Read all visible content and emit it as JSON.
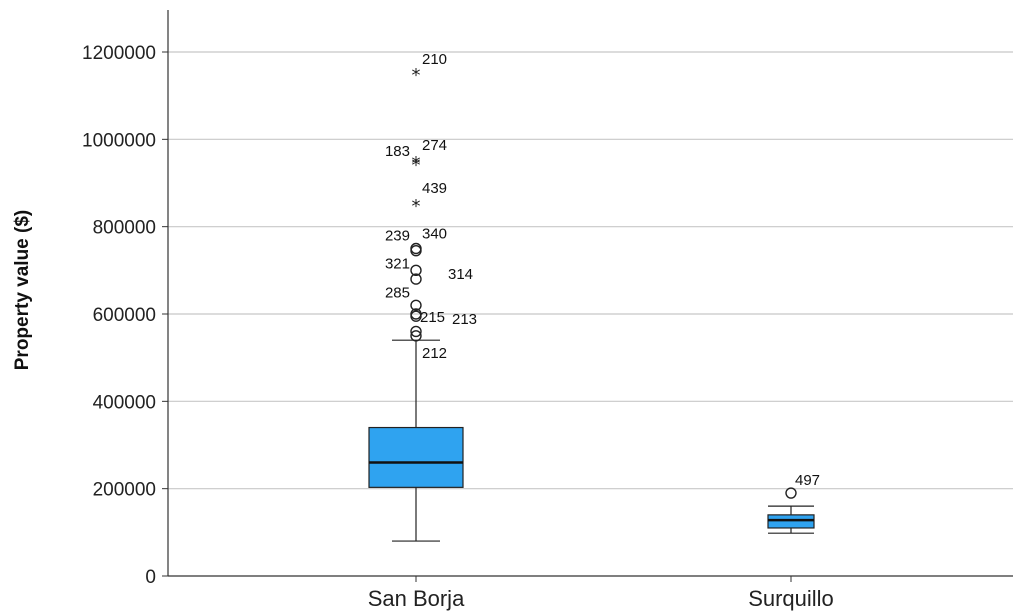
{
  "chart_data": {
    "type": "boxplot",
    "ylabel": "Property value ($)",
    "xlabel": "",
    "ylim": [
      0,
      1300000
    ],
    "yticks": [
      0,
      200000,
      400000,
      600000,
      800000,
      1000000,
      1200000
    ],
    "ytick_labels": [
      "0",
      "200000",
      "400000",
      "600000",
      "800000",
      "1000000",
      "1200000"
    ],
    "grid": "horizontal",
    "box_color": "#2fa3f0",
    "categories": [
      "San Borja",
      "Surquillo"
    ],
    "boxes": [
      {
        "category": "San Borja",
        "whisker_low": 80000,
        "q1": 203000,
        "median": 260000,
        "q3": 340000,
        "whisker_high": 540000,
        "outliers": [
          {
            "value": 1150000,
            "marker": "star",
            "label": "210"
          },
          {
            "value": 948000,
            "marker": "star",
            "label": "274"
          },
          {
            "value": 943000,
            "marker": "star",
            "label": "183"
          },
          {
            "value": 850000,
            "marker": "star",
            "label": "439"
          },
          {
            "value": 750000,
            "marker": "circle",
            "label": "340"
          },
          {
            "value": 745000,
            "marker": "circle",
            "label": "239"
          },
          {
            "value": 700000,
            "marker": "circle",
            "label": "321"
          },
          {
            "value": 680000,
            "marker": "circle",
            "label": "314"
          },
          {
            "value": 620000,
            "marker": "circle",
            "label": "285"
          },
          {
            "value": 600000,
            "marker": "circle",
            "label": "215"
          },
          {
            "value": 595000,
            "marker": "circle",
            "label": "213"
          },
          {
            "value": 560000,
            "marker": "circle",
            "label": ""
          },
          {
            "value": 550000,
            "marker": "circle",
            "label": "212"
          }
        ]
      },
      {
        "category": "Surquillo",
        "whisker_low": 98000,
        "q1": 110000,
        "median": 128000,
        "q3": 140000,
        "whisker_high": 160000,
        "outliers": [
          {
            "value": 190000,
            "marker": "circle",
            "label": "497"
          }
        ]
      }
    ]
  }
}
